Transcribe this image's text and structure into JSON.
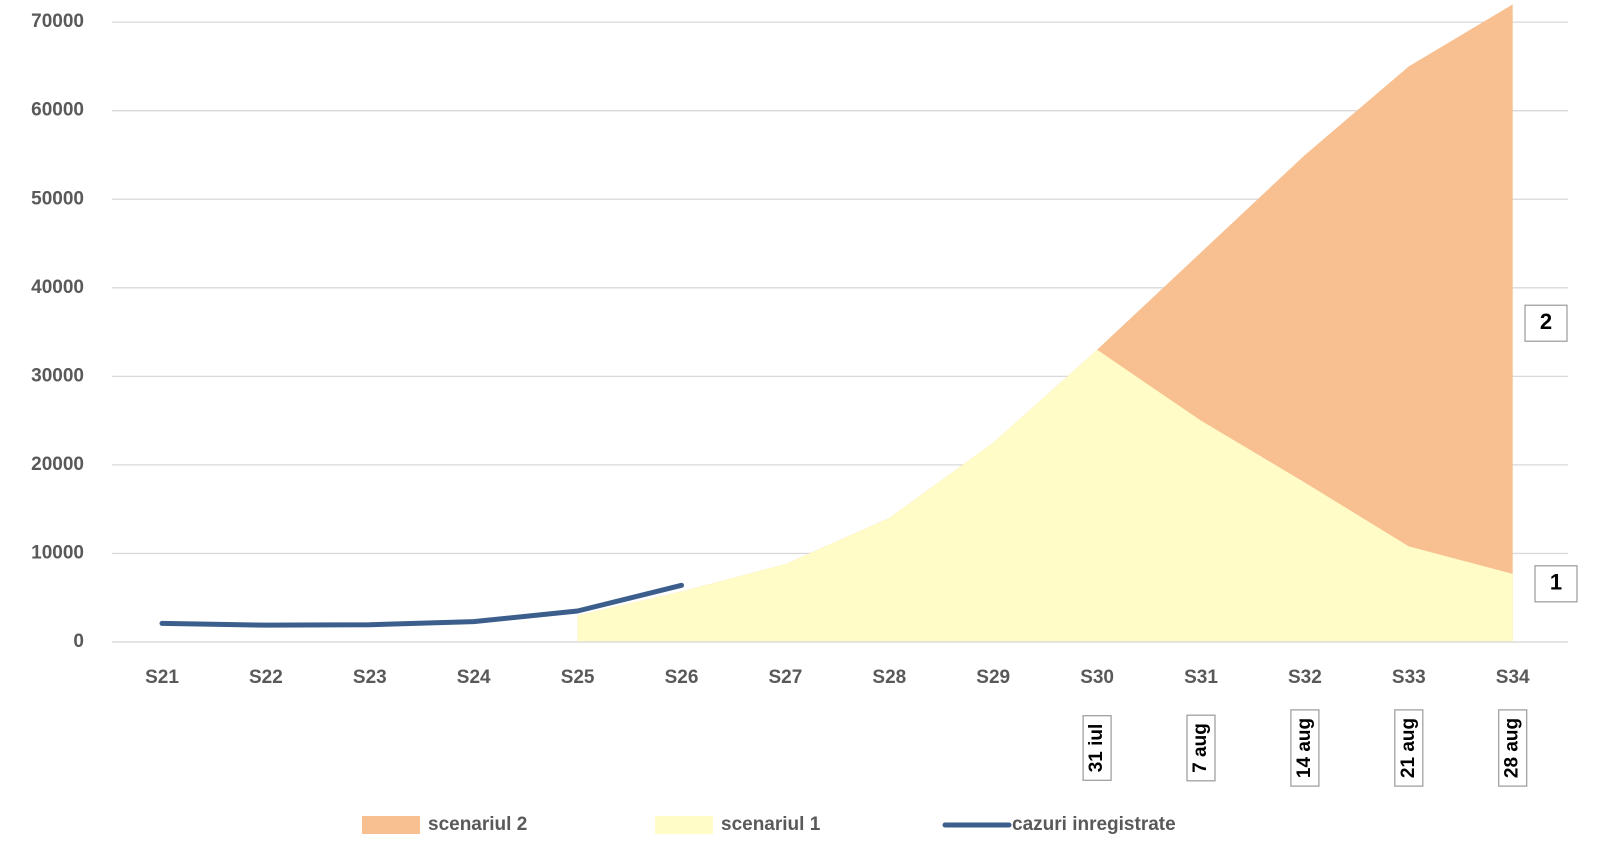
{
  "chart_data": {
    "type": "area_line",
    "categories": [
      "S21",
      "S22",
      "S23",
      "S24",
      "S25",
      "S26",
      "S27",
      "S28",
      "S29",
      "S30",
      "S31",
      "S32",
      "S33",
      "S34"
    ],
    "series": [
      {
        "name": "scenariul 2",
        "color": "#f8c090",
        "kind": "area",
        "values": [
          null,
          null,
          null,
          null,
          3000,
          5700,
          8800,
          14000,
          22500,
          33000,
          44000,
          55000,
          65000,
          72000
        ]
      },
      {
        "name": "scenariul 1",
        "color": "#fffcc8",
        "kind": "area",
        "values": [
          null,
          null,
          null,
          null,
          3000,
          5700,
          8800,
          14000,
          22500,
          33000,
          25000,
          18000,
          10800,
          7700
        ]
      },
      {
        "name": "cazuri inregistrate",
        "color": "#3b5e8c",
        "kind": "line",
        "values": [
          2100,
          1900,
          1950,
          2300,
          3500,
          6400,
          null,
          null,
          null,
          null,
          null,
          null,
          null,
          null
        ]
      }
    ],
    "ylim": [
      0,
      72500
    ],
    "yticks": [
      0,
      10000,
      20000,
      30000,
      40000,
      50000,
      60000,
      70000
    ],
    "grid": true,
    "date_labels": [
      "31 iul",
      "7 aug",
      "14 aug",
      "21 aug",
      "28 aug"
    ],
    "scenario_markers": [
      "2",
      "1"
    ]
  }
}
